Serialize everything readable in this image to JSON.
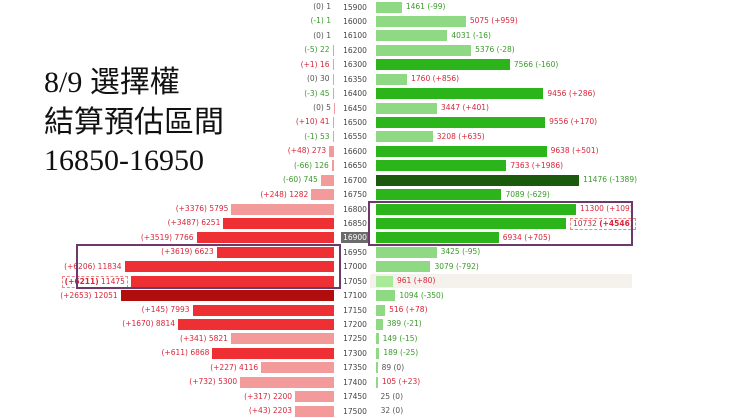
{
  "title": {
    "line1": "8/9 選擇權",
    "line2": "結算預估區間",
    "line3": "16850-16950"
  },
  "colors": {
    "call_light": "#f39a9a",
    "call": "#ee3035",
    "call_dark": "#b00d0d",
    "put_light": "#8fd884",
    "put": "#2cb41b",
    "put_dark": "#1b5a0c",
    "put_lighter": "#a8ea98",
    "positive_change": "#d9263a",
    "negative_change": "#3a9a2a",
    "zero_change": "#555555",
    "box": "#6b3a6b",
    "current_strike_bg": "#6b6b6b"
  },
  "chart_data": {
    "type": "bar",
    "layout": "butterfly (calls left, strikes center, puts right)",
    "current_strike": 16900,
    "highlight_boxes": [
      {
        "side": "put",
        "strikes": [
          16800,
          16900
        ]
      },
      {
        "side": "call",
        "strikes": [
          16950,
          17050
        ]
      }
    ],
    "rows": [
      {
        "strike": 15900,
        "call_oi": 1,
        "call_chg": 0,
        "call_shade": "light",
        "put_oi": 1461,
        "put_chg": -99,
        "put_shade": "light"
      },
      {
        "strike": 16000,
        "call_oi": 1,
        "call_chg": -1,
        "call_shade": "light",
        "put_oi": 5075,
        "put_chg": 959,
        "put_shade": "light"
      },
      {
        "strike": 16100,
        "call_oi": 1,
        "call_chg": 0,
        "call_shade": "light",
        "put_oi": 4031,
        "put_chg": -16,
        "put_shade": "light"
      },
      {
        "strike": 16200,
        "call_oi": 22,
        "call_chg": -5,
        "call_shade": "light",
        "put_oi": 5376,
        "put_chg": -28,
        "put_shade": "light"
      },
      {
        "strike": 16300,
        "call_oi": 16,
        "call_chg": 1,
        "call_shade": "light",
        "put_oi": 7566,
        "put_chg": -160,
        "put_shade": "normal"
      },
      {
        "strike": 16350,
        "call_oi": 30,
        "call_chg": 0,
        "call_shade": "light",
        "put_oi": 1760,
        "put_chg": 856,
        "put_shade": "light"
      },
      {
        "strike": 16400,
        "call_oi": 45,
        "call_chg": -3,
        "call_shade": "light",
        "put_oi": 9456,
        "put_chg": 286,
        "put_shade": "normal"
      },
      {
        "strike": 16450,
        "call_oi": 5,
        "call_chg": 0,
        "call_shade": "light",
        "put_oi": 3447,
        "put_chg": 401,
        "put_shade": "light"
      },
      {
        "strike": 16500,
        "call_oi": 41,
        "call_chg": 10,
        "call_shade": "light",
        "put_oi": 9556,
        "put_chg": 170,
        "put_shade": "normal"
      },
      {
        "strike": 16550,
        "call_oi": 53,
        "call_chg": -1,
        "call_shade": "light",
        "put_oi": 3208,
        "put_chg": 635,
        "put_shade": "light"
      },
      {
        "strike": 16600,
        "call_oi": 273,
        "call_chg": 48,
        "call_shade": "light",
        "put_oi": 9638,
        "put_chg": 501,
        "put_shade": "normal"
      },
      {
        "strike": 16650,
        "call_oi": 126,
        "call_chg": -66,
        "call_shade": "light",
        "put_oi": 7363,
        "put_chg": 1986,
        "put_shade": "normal"
      },
      {
        "strike": 16700,
        "call_oi": 745,
        "call_chg": -60,
        "call_shade": "light",
        "put_oi": 11476,
        "put_chg": -1389,
        "put_shade": "dark"
      },
      {
        "strike": 16750,
        "call_oi": 1282,
        "call_chg": 248,
        "call_shade": "light",
        "put_oi": 7089,
        "put_chg": -629,
        "put_shade": "normal"
      },
      {
        "strike": 16800,
        "call_oi": 5795,
        "call_chg": 3376,
        "call_shade": "light",
        "put_oi": 11300,
        "put_chg": 109,
        "put_shade": "normal"
      },
      {
        "strike": 16850,
        "call_oi": 6251,
        "call_chg": 3487,
        "call_shade": "normal",
        "put_oi": 10732,
        "put_chg": 4546,
        "put_shade": "normal",
        "put_emphasis": true
      },
      {
        "strike": 16900,
        "call_oi": 7766,
        "call_chg": 3519,
        "call_shade": "normal",
        "put_oi": 6934,
        "put_chg": 705,
        "put_shade": "normal"
      },
      {
        "strike": 16950,
        "call_oi": 6623,
        "call_chg": 3619,
        "call_shade": "normal",
        "put_oi": 3425,
        "put_chg": -95,
        "put_shade": "light"
      },
      {
        "strike": 17000,
        "call_oi": 11834,
        "call_chg": 6206,
        "call_shade": "normal",
        "put_oi": 3079,
        "put_chg": -792,
        "put_shade": "light"
      },
      {
        "strike": 17050,
        "call_oi": 11475,
        "call_chg": 6211,
        "call_shade": "normal",
        "call_emphasis": true,
        "put_oi": 961,
        "put_chg": 80,
        "put_shade": "lighter",
        "row_highlight": true
      },
      {
        "strike": 17100,
        "call_oi": 12051,
        "call_chg": 2653,
        "call_shade": "dark",
        "put_oi": 1094,
        "put_chg": -350,
        "put_shade": "light"
      },
      {
        "strike": 17150,
        "call_oi": 7993,
        "call_chg": 145,
        "call_shade": "normal",
        "put_oi": 516,
        "put_chg": 78,
        "put_shade": "light"
      },
      {
        "strike": 17200,
        "call_oi": 8814,
        "call_chg": 1670,
        "call_shade": "normal",
        "put_oi": 389,
        "put_chg": -21,
        "put_shade": "light"
      },
      {
        "strike": 17250,
        "call_oi": 5821,
        "call_chg": 341,
        "call_shade": "light",
        "put_oi": 149,
        "put_chg": -15,
        "put_shade": "light"
      },
      {
        "strike": 17300,
        "call_oi": 6868,
        "call_chg": 611,
        "call_shade": "normal",
        "put_oi": 189,
        "put_chg": -25,
        "put_shade": "light"
      },
      {
        "strike": 17350,
        "call_oi": 4116,
        "call_chg": 227,
        "call_shade": "light",
        "put_oi": 89,
        "put_chg": 0,
        "put_shade": "light"
      },
      {
        "strike": 17400,
        "call_oi": 5300,
        "call_chg": 732,
        "call_shade": "light",
        "put_oi": 105,
        "put_chg": 23,
        "put_shade": "light"
      },
      {
        "strike": 17450,
        "call_oi": 2200,
        "call_chg": 317,
        "call_shade": "light",
        "put_oi": 25,
        "put_chg": 0,
        "put_shade": "light"
      },
      {
        "strike": 17500,
        "call_oi": 2203,
        "call_chg": 43,
        "call_shade": "light",
        "put_oi": 32,
        "put_chg": 0,
        "put_shade": "light"
      }
    ]
  }
}
